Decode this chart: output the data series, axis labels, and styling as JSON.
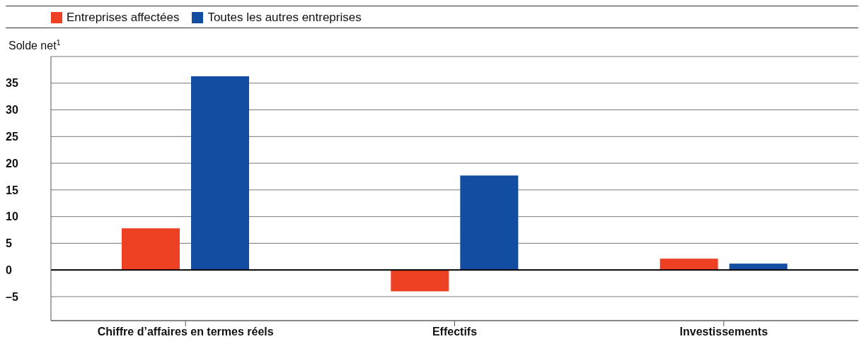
{
  "chart_data": {
    "type": "bar",
    "ylabel": "Solde net$^{1}$",
    "categories": [
      "Chiffre d’affaires en termes réels",
      "Effectifs",
      "Investissements"
    ],
    "series": [
      {
        "name": "Entreprises affectées",
        "color": "#ee4023",
        "values": [
          7.8,
          -4.0,
          2.1
        ]
      },
      {
        "name": "Toutes les autres entreprises",
        "color": "#134da1",
        "values": [
          36.3,
          17.7,
          1.2
        ]
      }
    ],
    "ylim": [
      -9.5,
      40
    ],
    "yticks": [
      {
        "value": -5,
        "label": "–5"
      },
      0,
      5,
      10,
      15,
      20,
      25,
      30,
      35
    ],
    "grid": "y",
    "legend": "top left",
    "ref_lines": [
      {
        "axis": "y",
        "value": 0,
        "color": "#000000"
      }
    ]
  }
}
